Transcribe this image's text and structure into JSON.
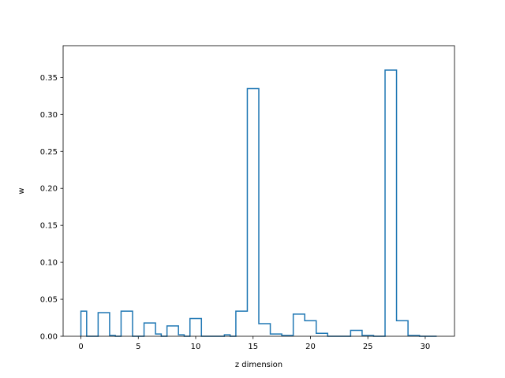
{
  "chart_data": {
    "type": "bar",
    "style": "step-histogram",
    "title": "",
    "xlabel": "z dimension",
    "ylabel": "w",
    "xlim": [
      -1.55,
      32.55
    ],
    "ylim": [
      0,
      0.393
    ],
    "line_color": "#1f77b4",
    "grid": false,
    "x_ticks": [
      0,
      5,
      10,
      15,
      20,
      25,
      30
    ],
    "x_tick_labels": [
      "0",
      "5",
      "10",
      "15",
      "20",
      "25",
      "30"
    ],
    "y_ticks": [
      0.0,
      0.05,
      0.1,
      0.15,
      0.2,
      0.25,
      0.3,
      0.35
    ],
    "y_tick_labels": [
      "0.00",
      "0.05",
      "0.10",
      "0.15",
      "0.20",
      "0.25",
      "0.30",
      "0.35"
    ],
    "bin_edges": [
      0,
      0.5,
      1,
      1.5,
      2.5,
      3,
      3.5,
      4.5,
      5,
      5.5,
      6.5,
      7,
      7.5,
      8.5,
      9,
      9.5,
      10.5,
      11,
      11.5,
      12.5,
      13,
      13.5,
      14.5,
      15.5,
      16.5,
      17.5,
      18.5,
      19.5,
      20.5,
      21.5,
      22.5,
      23.5,
      24.5,
      25.5,
      26.5,
      27.5,
      28.5,
      29.5,
      30.5,
      31
    ],
    "values": [
      0.034,
      0.0,
      0.0,
      0.032,
      0.001,
      0.0,
      0.034,
      0.0,
      0.0,
      0.018,
      0.003,
      0.0,
      0.014,
      0.002,
      0.0,
      0.024,
      0.0,
      0.0,
      0.0,
      0.002,
      0.0,
      0.034,
      0.335,
      0.017,
      0.003,
      0.001,
      0.03,
      0.021,
      0.004,
      0.0,
      0.0,
      0.008,
      0.001,
      0.0,
      0.36,
      0.021,
      0.001,
      0.0,
      0.0
    ]
  }
}
